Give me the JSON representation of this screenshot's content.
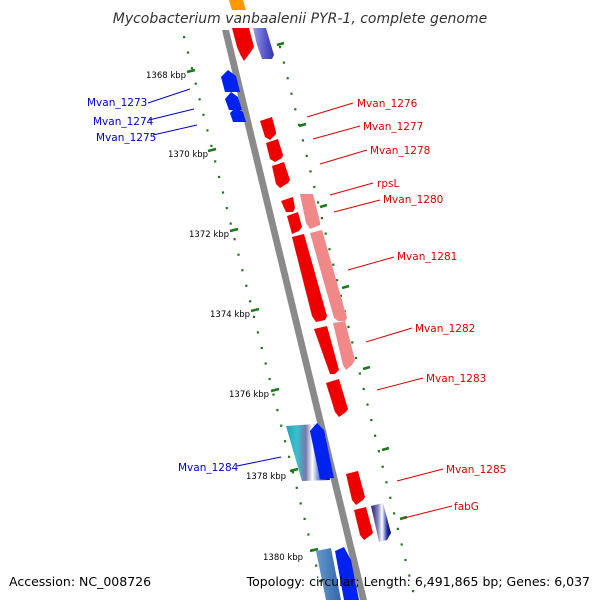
{
  "title": "Mycobacterium vanbaalenii PYR-1, complete genome",
  "footer": {
    "accession": "Accession: NC_008726",
    "topology": "Topology: circular; Length: 6,491,865 bp; Genes: 6,037"
  },
  "colors": {
    "backbone": "#8a8a8a",
    "forward_strand": "#ee0000",
    "reverse_strand": "#0000dd",
    "tick": "#1a7a1a",
    "background": "#ffffff"
  },
  "scale_ticks": [
    {
      "label": "1368 kbp"
    },
    {
      "label": "1370 kbp"
    },
    {
      "label": "1372 kbp"
    },
    {
      "label": "1374 kbp"
    },
    {
      "label": "1376 kbp"
    },
    {
      "label": "1378 kbp"
    },
    {
      "label": "1380 kbp"
    }
  ],
  "gene_labels_left": [
    {
      "name": "Mvan_1273"
    },
    {
      "name": "Mvan_1274"
    },
    {
      "name": "Mvan_1275"
    },
    {
      "name": "Mvan_1284"
    }
  ],
  "gene_labels_right": [
    {
      "name": "Mvan_1276"
    },
    {
      "name": "Mvan_1277"
    },
    {
      "name": "Mvan_1278"
    },
    {
      "name": "rpsL"
    },
    {
      "name": "Mvan_1280"
    },
    {
      "name": "Mvan_1281"
    },
    {
      "name": "Mvan_1282"
    },
    {
      "name": "Mvan_1283"
    },
    {
      "name": "Mvan_1285"
    },
    {
      "name": "fabG"
    }
  ]
}
